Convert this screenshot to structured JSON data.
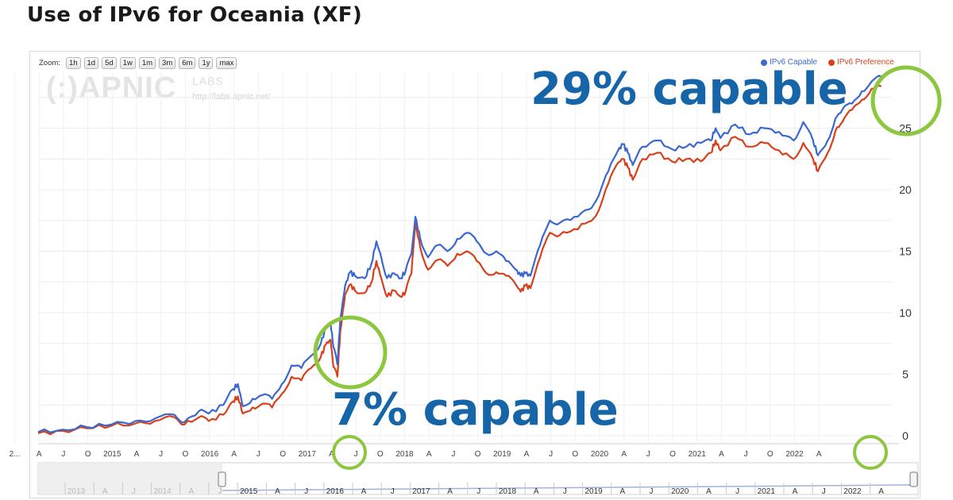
{
  "page": {
    "title": "Use of IPv6 for Oceania (XF)"
  },
  "toolbar": {
    "zoom_label": "Zoom:",
    "zoom_buttons": [
      "1h",
      "1d",
      "5d",
      "1w",
      "1m",
      "3m",
      "6m",
      "1y",
      "max"
    ]
  },
  "logo": {
    "text": "APNIC",
    "labs": "LABS",
    "url": "http://labs.apnic.net/"
  },
  "annotations": {
    "top": "29% capable",
    "bottom": "7% capable"
  },
  "colors": {
    "capable": "#3a67d0",
    "preference": "#d8401b",
    "annotation": "#1565a8",
    "circle": "#8dc63f"
  },
  "chart_data": {
    "type": "line",
    "title": "Use of IPv6 for Oceania (XF)",
    "x_unit": "year",
    "ylim": [
      0,
      30
    ],
    "y_ticks": [
      "0",
      "5",
      "10",
      "15",
      "20",
      "25"
    ],
    "x_tick_labels": [
      "2...",
      "A",
      "J",
      "O",
      "2015",
      "A",
      "J",
      "O",
      "2016",
      "A",
      "J",
      "O",
      "2017",
      "A",
      "J",
      "O",
      "2018",
      "A",
      "J",
      "O",
      "2019",
      "A",
      "J",
      "O",
      "2020",
      "A",
      "J",
      "O",
      "2021",
      "A",
      "J",
      "O",
      "2022",
      "A"
    ],
    "navigator_labels": [
      "2013",
      "A",
      "J",
      "2014",
      "A",
      "J",
      "2015",
      "A",
      "J",
      "2016",
      "A",
      "J",
      "2017",
      "A",
      "J",
      "2018",
      "A",
      "J",
      "2019",
      "A",
      "J",
      "2020",
      "A",
      "J",
      "2021",
      "A",
      "J",
      "2022",
      "A"
    ],
    "grid": true,
    "legend_position": "top-right",
    "series": [
      {
        "name": "IPv6 Capable",
        "color": "#3a67d0",
        "points": [
          [
            2014.0,
            0.3
          ],
          [
            2014.25,
            0.5
          ],
          [
            2014.5,
            0.7
          ],
          [
            2014.75,
            0.9
          ],
          [
            2015.0,
            1.2
          ],
          [
            2015.2,
            1.4
          ],
          [
            2015.4,
            1.7
          ],
          [
            2015.5,
            1.1
          ],
          [
            2015.65,
            2.0
          ],
          [
            2015.75,
            1.8
          ],
          [
            2015.9,
            2.5
          ],
          [
            2016.0,
            3.8
          ],
          [
            2016.05,
            4.2
          ],
          [
            2016.1,
            2.4
          ],
          [
            2016.2,
            3.0
          ],
          [
            2016.3,
            3.3
          ],
          [
            2016.4,
            3.0
          ],
          [
            2016.5,
            4.2
          ],
          [
            2016.6,
            5.7
          ],
          [
            2016.7,
            5.5
          ],
          [
            2016.8,
            6.5
          ],
          [
            2016.9,
            7.5
          ],
          [
            2016.95,
            8.7
          ],
          [
            2017.0,
            9.2
          ],
          [
            2017.03,
            7.2
          ],
          [
            2017.07,
            5.8
          ],
          [
            2017.1,
            9.5
          ],
          [
            2017.15,
            12.2
          ],
          [
            2017.2,
            13.3
          ],
          [
            2017.25,
            13.0
          ],
          [
            2017.35,
            12.8
          ],
          [
            2017.42,
            14.0
          ],
          [
            2017.47,
            15.8
          ],
          [
            2017.52,
            14.5
          ],
          [
            2017.58,
            12.8
          ],
          [
            2017.65,
            13.2
          ],
          [
            2017.72,
            12.8
          ],
          [
            2017.77,
            13.4
          ],
          [
            2017.83,
            14.8
          ],
          [
            2017.87,
            17.8
          ],
          [
            2017.92,
            16.0
          ],
          [
            2018.0,
            14.5
          ],
          [
            2018.1,
            15.5
          ],
          [
            2018.2,
            15.0
          ],
          [
            2018.3,
            16.0
          ],
          [
            2018.4,
            16.5
          ],
          [
            2018.5,
            15.8
          ],
          [
            2018.6,
            14.8
          ],
          [
            2018.7,
            15.0
          ],
          [
            2018.8,
            14.2
          ],
          [
            2018.9,
            13.5
          ],
          [
            2018.95,
            13.0
          ],
          [
            2019.0,
            13.2
          ],
          [
            2019.05,
            13.0
          ],
          [
            2019.15,
            15.5
          ],
          [
            2019.25,
            17.5
          ],
          [
            2019.35,
            17.3
          ],
          [
            2019.5,
            17.8
          ],
          [
            2019.65,
            18.4
          ],
          [
            2019.75,
            19.5
          ],
          [
            2019.85,
            21.5
          ],
          [
            2019.95,
            23.2
          ],
          [
            2020.0,
            23.7
          ],
          [
            2020.05,
            23.0
          ],
          [
            2020.1,
            22.0
          ],
          [
            2020.2,
            23.5
          ],
          [
            2020.35,
            24.0
          ],
          [
            2020.5,
            23.3
          ],
          [
            2020.65,
            23.5
          ],
          [
            2020.8,
            23.8
          ],
          [
            2020.9,
            24.0
          ],
          [
            2020.95,
            25.0
          ],
          [
            2021.0,
            24.2
          ],
          [
            2021.15,
            25.3
          ],
          [
            2021.3,
            24.5
          ],
          [
            2021.45,
            25.0
          ],
          [
            2021.6,
            24.7
          ],
          [
            2021.75,
            24.0
          ],
          [
            2021.85,
            25.5
          ],
          [
            2021.95,
            24.0
          ],
          [
            2022.0,
            22.8
          ],
          [
            2022.1,
            24.0
          ],
          [
            2022.18,
            25.8
          ],
          [
            2022.25,
            26.5
          ],
          [
            2022.35,
            27.0
          ],
          [
            2022.45,
            28.0
          ],
          [
            2022.55,
            28.8
          ],
          [
            2022.65,
            29.2
          ]
        ]
      },
      {
        "name": "IPv6 Preference",
        "color": "#d8401b",
        "points": [
          [
            2014.0,
            0.2
          ],
          [
            2014.25,
            0.4
          ],
          [
            2014.5,
            0.6
          ],
          [
            2014.75,
            0.8
          ],
          [
            2015.0,
            1.0
          ],
          [
            2015.2,
            1.2
          ],
          [
            2015.4,
            1.5
          ],
          [
            2015.5,
            0.9
          ],
          [
            2015.65,
            1.5
          ],
          [
            2015.75,
            1.2
          ],
          [
            2015.9,
            1.7
          ],
          [
            2016.0,
            2.8
          ],
          [
            2016.05,
            3.2
          ],
          [
            2016.1,
            1.8
          ],
          [
            2016.2,
            2.3
          ],
          [
            2016.3,
            2.6
          ],
          [
            2016.4,
            2.3
          ],
          [
            2016.5,
            3.4
          ],
          [
            2016.6,
            4.8
          ],
          [
            2016.7,
            4.5
          ],
          [
            2016.8,
            5.5
          ],
          [
            2016.9,
            6.4
          ],
          [
            2016.95,
            7.4
          ],
          [
            2017.0,
            7.8
          ],
          [
            2017.03,
            5.6
          ],
          [
            2017.07,
            4.8
          ],
          [
            2017.1,
            8.5
          ],
          [
            2017.15,
            11.5
          ],
          [
            2017.2,
            12.3
          ],
          [
            2017.25,
            11.8
          ],
          [
            2017.35,
            11.6
          ],
          [
            2017.42,
            12.5
          ],
          [
            2017.47,
            14.2
          ],
          [
            2017.52,
            12.8
          ],
          [
            2017.58,
            11.3
          ],
          [
            2017.65,
            11.8
          ],
          [
            2017.72,
            11.3
          ],
          [
            2017.77,
            11.7
          ],
          [
            2017.83,
            13.2
          ],
          [
            2017.87,
            17.3
          ],
          [
            2017.92,
            15.3
          ],
          [
            2018.0,
            13.5
          ],
          [
            2018.1,
            14.3
          ],
          [
            2018.2,
            13.8
          ],
          [
            2018.3,
            14.8
          ],
          [
            2018.4,
            15.0
          ],
          [
            2018.5,
            14.2
          ],
          [
            2018.6,
            13.2
          ],
          [
            2018.7,
            13.3
          ],
          [
            2018.8,
            13.0
          ],
          [
            2018.9,
            12.3
          ],
          [
            2018.95,
            11.7
          ],
          [
            2019.0,
            12.2
          ],
          [
            2019.05,
            12.0
          ],
          [
            2019.15,
            14.5
          ],
          [
            2019.25,
            16.5
          ],
          [
            2019.35,
            16.3
          ],
          [
            2019.5,
            16.8
          ],
          [
            2019.65,
            17.4
          ],
          [
            2019.75,
            18.3
          ],
          [
            2019.85,
            20.5
          ],
          [
            2019.95,
            22.2
          ],
          [
            2020.0,
            22.5
          ],
          [
            2020.05,
            21.8
          ],
          [
            2020.1,
            20.8
          ],
          [
            2020.2,
            22.5
          ],
          [
            2020.35,
            23.0
          ],
          [
            2020.5,
            22.3
          ],
          [
            2020.65,
            22.5
          ],
          [
            2020.8,
            22.3
          ],
          [
            2020.9,
            23.0
          ],
          [
            2020.95,
            24.0
          ],
          [
            2021.0,
            23.2
          ],
          [
            2021.15,
            24.3
          ],
          [
            2021.3,
            23.5
          ],
          [
            2021.45,
            23.8
          ],
          [
            2021.6,
            23.2
          ],
          [
            2021.75,
            22.5
          ],
          [
            2021.85,
            23.8
          ],
          [
            2021.95,
            22.5
          ],
          [
            2022.0,
            21.5
          ],
          [
            2022.1,
            23.0
          ],
          [
            2022.18,
            24.8
          ],
          [
            2022.25,
            25.5
          ],
          [
            2022.35,
            26.5
          ],
          [
            2022.45,
            27.3
          ],
          [
            2022.55,
            28.2
          ],
          [
            2022.65,
            28.4
          ]
        ]
      }
    ]
  }
}
